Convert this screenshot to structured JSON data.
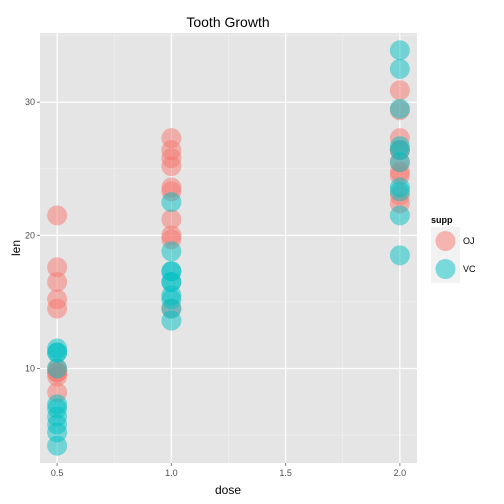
{
  "chart_data": {
    "type": "scatter",
    "title": "Tooth Growth",
    "xlabel": "dose",
    "ylabel": "len",
    "xlim": [
      0.425,
      2.075
    ],
    "ylim": [
      2.9,
      35.2
    ],
    "x_ticks": [
      0.5,
      1.0,
      1.5,
      2.0
    ],
    "x_tick_labels": [
      "0.5",
      "1.0",
      "1.5",
      "2.0"
    ],
    "y_ticks": [
      10,
      20,
      30
    ],
    "y_tick_labels": [
      "10",
      "20",
      "30"
    ],
    "grid": true,
    "legend": {
      "title": "supp",
      "position": "right",
      "entries": [
        {
          "label": "OJ",
          "color": "#F8766D"
        },
        {
          "label": "VC",
          "color": "#00BFC4"
        }
      ]
    },
    "series": [
      {
        "name": "OJ",
        "color": "#F8766D",
        "x": [
          0.5,
          0.5,
          0.5,
          0.5,
          0.5,
          0.5,
          0.5,
          0.5,
          0.5,
          0.5,
          1.0,
          1.0,
          1.0,
          1.0,
          1.0,
          1.0,
          1.0,
          1.0,
          1.0,
          1.0,
          2.0,
          2.0,
          2.0,
          2.0,
          2.0,
          2.0,
          2.0,
          2.0,
          2.0,
          2.0
        ],
        "y": [
          15.2,
          21.5,
          17.6,
          9.7,
          14.5,
          10.0,
          8.2,
          9.4,
          16.5,
          9.7,
          19.7,
          23.3,
          23.6,
          26.4,
          20.0,
          25.2,
          25.8,
          21.2,
          14.5,
          27.3,
          25.5,
          26.4,
          22.4,
          24.5,
          24.8,
          30.9,
          26.4,
          27.3,
          29.4,
          23.0
        ]
      },
      {
        "name": "VC",
        "color": "#00BFC4",
        "x": [
          0.5,
          0.5,
          0.5,
          0.5,
          0.5,
          0.5,
          0.5,
          0.5,
          0.5,
          0.5,
          1.0,
          1.0,
          1.0,
          1.0,
          1.0,
          1.0,
          1.0,
          1.0,
          1.0,
          1.0,
          2.0,
          2.0,
          2.0,
          2.0,
          2.0,
          2.0,
          2.0,
          2.0,
          2.0,
          2.0
        ],
        "y": [
          4.2,
          11.5,
          7.3,
          5.8,
          6.4,
          10.0,
          11.2,
          11.2,
          5.2,
          7.0,
          16.5,
          16.5,
          15.2,
          17.3,
          22.5,
          17.3,
          13.6,
          14.5,
          18.8,
          15.5,
          23.6,
          18.5,
          33.9,
          25.5,
          26.4,
          32.5,
          26.7,
          21.5,
          23.3,
          29.5
        ]
      }
    ]
  }
}
